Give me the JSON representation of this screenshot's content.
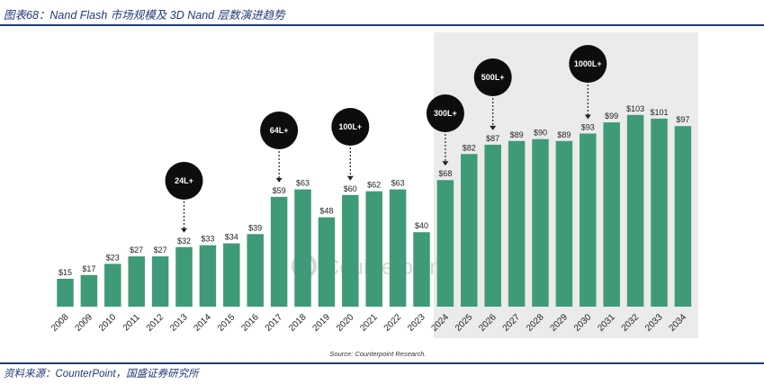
{
  "figure": {
    "title": "图表68：Nand Flash 市场规模及 3D Nand 层数演进趋势",
    "source": "资料来源：CounterPoint，国盛证券研究所"
  },
  "chart_data": {
    "type": "bar",
    "categories": [
      "2008",
      "2009",
      "2010",
      "2011",
      "2012",
      "2013",
      "2014",
      "2015",
      "2016",
      "2017",
      "2018",
      "2019",
      "2020",
      "2021",
      "2022",
      "2023",
      "2024",
      "2025",
      "2026",
      "2027",
      "2028",
      "2029",
      "2030",
      "2031",
      "2032",
      "2033",
      "2034"
    ],
    "values": [
      15,
      17,
      23,
      27,
      27,
      32,
      33,
      34,
      39,
      59,
      63,
      48,
      60,
      62,
      63,
      40,
      68,
      82,
      87,
      89,
      90,
      89,
      93,
      99,
      103,
      101,
      97
    ],
    "value_labels": [
      "$15",
      "$17",
      "$23",
      "$27",
      "$27",
      "$32",
      "$33",
      "$34",
      "$39",
      "$59",
      "$63",
      "$48",
      "$60",
      "$62",
      "$63",
      "$40",
      "$68",
      "$82",
      "$87",
      "$89",
      "$90",
      "$89",
      "$93",
      "$99",
      "$103",
      "$101",
      "$97"
    ],
    "annotations": [
      {
        "label": "24L+",
        "year": "2013"
      },
      {
        "label": "64L+",
        "year": "2017"
      },
      {
        "label": "100L+",
        "year": "2020"
      },
      {
        "label": "300L+",
        "year": "2024"
      },
      {
        "label": "500L+",
        "year": "2026"
      },
      {
        "label": "1000L+",
        "year": "2030"
      }
    ],
    "forecast_start": "2024",
    "source_note": "Source: Counterpoint Research.",
    "watermark": "Counterpoint",
    "bar_color": "#3f9b77",
    "ylim": [
      0,
      110
    ],
    "grid": false
  }
}
